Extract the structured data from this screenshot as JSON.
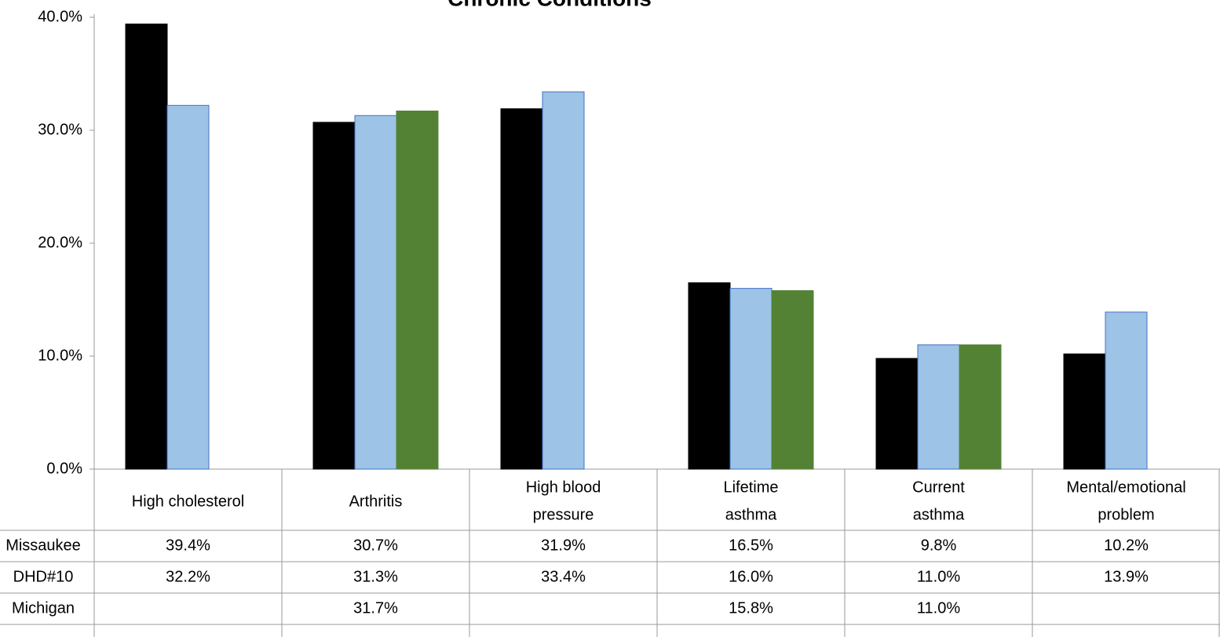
{
  "chart_data": {
    "type": "bar",
    "title": "Chronic Conditions",
    "categories": [
      "High cholesterol",
      "Arthritis",
      "High blood\npressure",
      "Lifetime\nasthma",
      "Current\nasthma",
      "Mental/emotional\nproblem"
    ],
    "series": [
      {
        "name": "Missaukee",
        "color": "#000000",
        "values": [
          39.4,
          30.7,
          31.9,
          16.5,
          9.8,
          10.2
        ],
        "value_labels": [
          "39.4%",
          "30.7%",
          "31.9%",
          "16.5%",
          "9.8%",
          "10.2%"
        ]
      },
      {
        "name": "DHD#10",
        "color": "#9dc3e6",
        "values": [
          32.2,
          31.3,
          33.4,
          16.0,
          11.0,
          13.9
        ],
        "value_labels": [
          "32.2%",
          "31.3%",
          "33.4%",
          "16.0%",
          "11.0%",
          "13.9%"
        ]
      },
      {
        "name": "Michigan",
        "color": "#548235",
        "values": [
          null,
          31.7,
          null,
          15.8,
          11.0,
          null
        ],
        "value_labels": [
          null,
          "31.7%",
          null,
          "15.8%",
          "11.0%",
          null
        ]
      }
    ],
    "ylim": [
      0,
      40
    ],
    "yticks": [
      {
        "value": 0,
        "label": "0.0%"
      },
      {
        "value": 10,
        "label": "10.0%"
      },
      {
        "value": 20,
        "label": "20.0%"
      },
      {
        "value": 30,
        "label": "30.0%"
      },
      {
        "value": 40,
        "label": "40.0%"
      }
    ]
  }
}
